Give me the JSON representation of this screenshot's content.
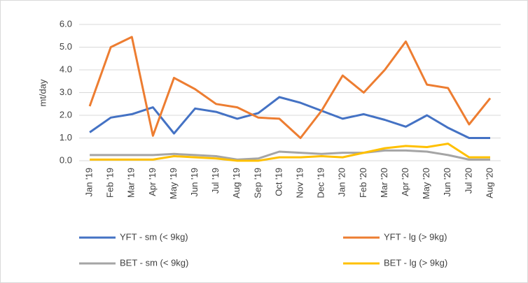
{
  "chart_data": {
    "type": "line",
    "y_label": "mt/day",
    "categories": [
      "Jan '19",
      "Feb '19",
      "Mar '19",
      "Apr '19",
      "May '19",
      "Jun '19",
      "Jul '19",
      "Aug '19",
      "Sep '19",
      "Oct '19",
      "Nov '19",
      "Dec '19",
      "Jan '20",
      "Feb '20",
      "Mar '20",
      "Apr '20",
      "May '20",
      "Jun '20",
      "Jul '20",
      "Aug '20"
    ],
    "series": [
      {
        "name": "YFT - sm (< 9kg)",
        "color": "#4472c4",
        "values": [
          1.25,
          1.9,
          2.05,
          2.35,
          1.2,
          2.3,
          2.15,
          1.85,
          2.1,
          2.8,
          2.55,
          2.2,
          1.85,
          2.05,
          1.8,
          1.5,
          2.0,
          1.45,
          1.0,
          1.0
        ]
      },
      {
        "name": "YFT - lg (> 9kg)",
        "color": "#ed7d31",
        "values": [
          2.4,
          5.0,
          5.45,
          1.1,
          3.65,
          3.15,
          2.5,
          2.35,
          1.9,
          1.85,
          1.0,
          2.2,
          3.75,
          3.0,
          4.0,
          5.25,
          3.35,
          3.2,
          1.6,
          2.75
        ]
      },
      {
        "name": "BET - sm (< 9kg)",
        "color": "#a5a5a5",
        "values": [
          0.25,
          0.25,
          0.25,
          0.25,
          0.3,
          0.25,
          0.2,
          0.05,
          0.1,
          0.4,
          0.35,
          0.3,
          0.35,
          0.35,
          0.45,
          0.45,
          0.4,
          0.25,
          0.05,
          0.05
        ]
      },
      {
        "name": "BET - lg (> 9kg)",
        "color": "#ffc000",
        "values": [
          0.05,
          0.05,
          0.05,
          0.05,
          0.2,
          0.15,
          0.1,
          0.0,
          0.0,
          0.15,
          0.15,
          0.2,
          0.15,
          0.35,
          0.55,
          0.65,
          0.6,
          0.75,
          0.15,
          0.15
        ]
      }
    ],
    "ylim": [
      0,
      6
    ],
    "yticks": [
      {
        "value": 0,
        "label": "0.0"
      },
      {
        "value": 1,
        "label": "1.0"
      },
      {
        "value": 2,
        "label": "2.0"
      },
      {
        "value": 3,
        "label": "3.0"
      },
      {
        "value": 4,
        "label": "4.0"
      },
      {
        "value": 5,
        "label": "5.0"
      },
      {
        "value": 6,
        "label": "6.0"
      }
    ],
    "grid": true,
    "legend": "bottom"
  }
}
